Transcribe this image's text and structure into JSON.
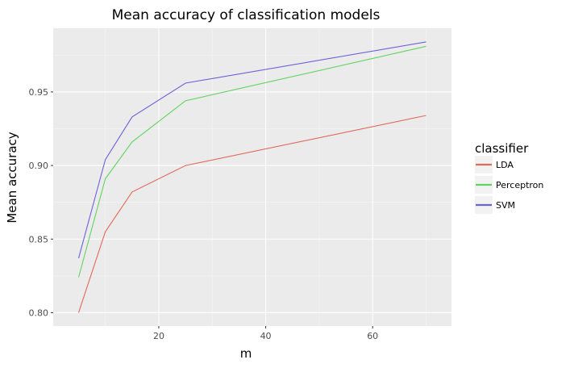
{
  "chart_data": {
    "type": "line",
    "title": "Mean accuracy of classification models",
    "xlabel": "m",
    "ylabel": "Mean accuracy",
    "x": [
      5,
      10,
      15,
      25,
      70
    ],
    "xlim": [
      0.25,
      74.75
    ],
    "ylim": [
      0.7909,
      0.9933
    ],
    "xticks": [
      20,
      40,
      60
    ],
    "xtick_labels": [
      "20",
      "40",
      "60"
    ],
    "yticks": [
      0.8,
      0.85,
      0.9,
      0.95
    ],
    "ytick_labels": [
      "0.80",
      "0.85",
      "0.90",
      "0.95"
    ],
    "grid": true,
    "legend": {
      "title": "classifier",
      "placement": "right"
    },
    "series": [
      {
        "name": "LDA",
        "color": "#e16a5a",
        "values": [
          0.8,
          0.855,
          0.882,
          0.9,
          0.934
        ]
      },
      {
        "name": "Perceptron",
        "color": "#5fd55f",
        "values": [
          0.824,
          0.891,
          0.916,
          0.944,
          0.981
        ]
      },
      {
        "name": "SVM",
        "color": "#6b63d8",
        "values": [
          0.837,
          0.904,
          0.933,
          0.956,
          0.984
        ]
      }
    ]
  }
}
